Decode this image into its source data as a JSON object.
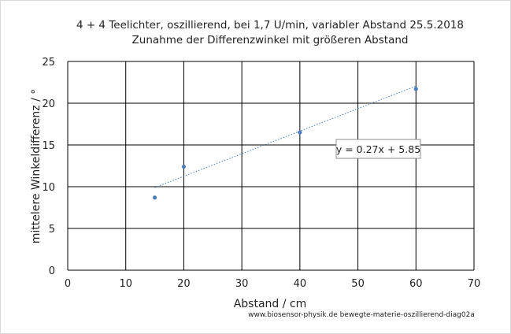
{
  "chart_data": {
    "type": "scatter",
    "title": "4 + 4 Teelichter, oszillierend, bei 1,7 U/min, variabler Abstand 25.5.2018",
    "subtitle": "Zunahme der Differenzwinkel mit größeren Abstand",
    "xlabel": "Abstand / cm",
    "ylabel": "mittelere  Winkeldifferenz / °",
    "xlim": [
      0,
      70
    ],
    "ylim": [
      0,
      25
    ],
    "xticks": [
      0,
      10,
      20,
      30,
      40,
      50,
      60,
      70
    ],
    "yticks": [
      0,
      5,
      10,
      15,
      20,
      25
    ],
    "grid": true,
    "series": [
      {
        "x": [
          15,
          20,
          40,
          60
        ],
        "y": [
          8.7,
          12.4,
          16.5,
          21.7
        ]
      }
    ],
    "trendline": {
      "type": "linear",
      "slope": 0.27,
      "intercept": 5.85,
      "x_range": [
        15,
        60
      ],
      "style": "dotted"
    },
    "annotation": "y = 0.27x + 5.85",
    "footer": "www.biosensor-physik.de bewegte-materie-oszillierend-diag02a",
    "colors": {
      "points": "#4a7ebb",
      "trendline": "#4a7ebb",
      "grid": "#000000"
    }
  }
}
